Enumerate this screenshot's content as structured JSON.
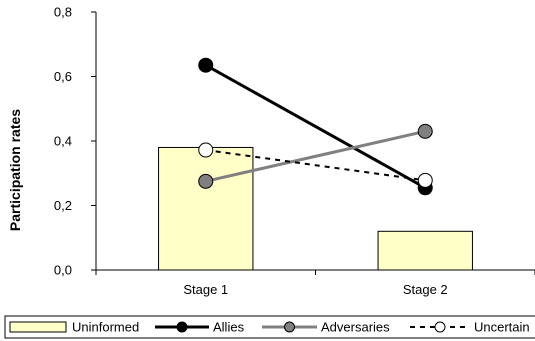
{
  "chart_data": {
    "type": "bar+line",
    "title": "",
    "xlabel": "",
    "ylabel": "Participation rates",
    "ylim": [
      0,
      0.8
    ],
    "y_ticks": [
      "0,0",
      "0,2",
      "0,4",
      "0,6",
      "0,8"
    ],
    "grid": false,
    "categories": [
      "Stage 1",
      "Stage 2"
    ],
    "series": [
      {
        "name": "Uninformed",
        "kind": "bar",
        "values": [
          0.38,
          0.12
        ],
        "color": "#ffffc8",
        "stroke": "#000000"
      },
      {
        "name": "Allies",
        "kind": "line",
        "values": [
          0.635,
          0.255
        ],
        "color": "#000000",
        "marker": "filled",
        "dash": "solid"
      },
      {
        "name": "Adversaries",
        "kind": "line",
        "values": [
          0.275,
          0.43
        ],
        "color": "#808080",
        "marker": "filled",
        "dash": "solid"
      },
      {
        "name": "Uncertain",
        "kind": "line",
        "values": [
          0.372,
          0.278
        ],
        "color": "#000000",
        "marker": "hollow",
        "dash": "dashed"
      }
    ],
    "legend": {
      "position": "bottom",
      "entries": [
        "Uninformed",
        "Allies",
        "Adversaries",
        "Uncertain"
      ]
    }
  }
}
